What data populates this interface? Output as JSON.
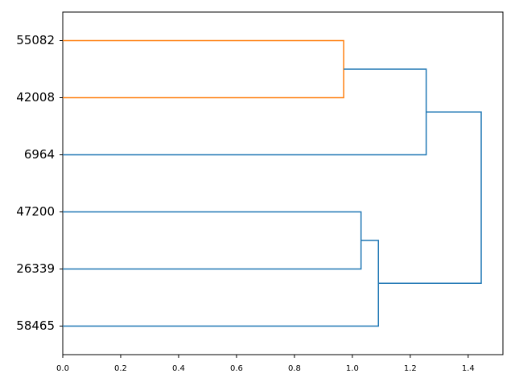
{
  "chart_data": {
    "type": "dendrogram",
    "tree": {
      "height": 1.445,
      "color": "#1f77b4",
      "children": [
        {
          "height": 1.255,
          "color": "#1f77b4",
          "children": [
            {
              "height": 0.97,
              "color": "#ff7f0e",
              "children": [
                {
                  "label": "55082"
                },
                {
                  "label": "42008"
                }
              ]
            },
            {
              "label": "6964"
            }
          ]
        },
        {
          "height": 1.09,
          "color": "#1f77b4",
          "children": [
            {
              "height": 1.03,
              "color": "#1f77b4",
              "children": [
                {
                  "label": "47200"
                },
                {
                  "label": "26339"
                }
              ]
            },
            {
              "label": "58465"
            }
          ]
        }
      ]
    },
    "xlim": [
      0,
      1.52
    ],
    "xticks": [
      {
        "value": 0,
        "label": "0.0"
      },
      0.2,
      0.4,
      0.6,
      0.8,
      {
        "value": 1,
        "label": "1.0"
      },
      1.2,
      1.4
    ]
  }
}
